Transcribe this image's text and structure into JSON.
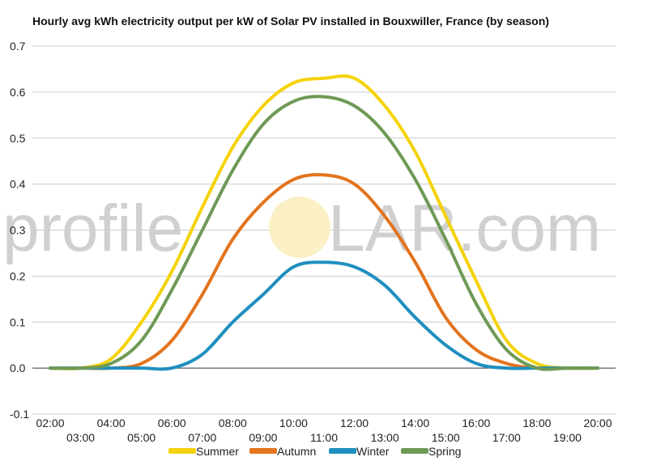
{
  "watermark": {
    "left": "profile",
    "right": "LAR.com"
  },
  "chart_data": {
    "type": "line",
    "title": "Hourly avg kWh electricity output per kW of Solar PV installed in Bouxwiller, France (by season)",
    "xlabel": "",
    "ylabel": "",
    "ylim": [
      -0.1,
      0.7
    ],
    "yticks": [
      "0.7",
      "0.6",
      "0.5",
      "0.4",
      "0.3",
      "0.2",
      "0.1",
      "0.0",
      "-0.1"
    ],
    "x_ticks_upper": [
      "02:00",
      "04:00",
      "06:00",
      "08:00",
      "10:00",
      "12:00",
      "14:00",
      "16:00",
      "18:00",
      "20:00"
    ],
    "x_ticks_lower": [
      "03:00",
      "05:00",
      "07:00",
      "09:00",
      "11:00",
      "13:00",
      "15:00",
      "17:00",
      "19:00"
    ],
    "x": [
      "02:00",
      "03:00",
      "04:00",
      "05:00",
      "06:00",
      "07:00",
      "08:00",
      "09:00",
      "10:00",
      "11:00",
      "12:00",
      "13:00",
      "14:00",
      "15:00",
      "16:00",
      "17:00",
      "18:00",
      "19:00",
      "20:00"
    ],
    "grid": true,
    "legend_position": "bottom",
    "series": [
      {
        "name": "Summer",
        "color": "#f5d20a",
        "values": [
          0.0,
          0.0,
          0.02,
          0.1,
          0.21,
          0.35,
          0.48,
          0.57,
          0.62,
          0.63,
          0.63,
          0.57,
          0.47,
          0.33,
          0.19,
          0.06,
          0.01,
          0.0,
          0.0
        ]
      },
      {
        "name": "Autumn",
        "color": "#e3741e",
        "values": [
          0.0,
          0.0,
          0.0,
          0.01,
          0.06,
          0.16,
          0.28,
          0.36,
          0.41,
          0.42,
          0.4,
          0.33,
          0.23,
          0.11,
          0.04,
          0.01,
          0.0,
          0.0,
          0.0
        ]
      },
      {
        "name": "Winter",
        "color": "#1f8fbf",
        "values": [
          0.0,
          0.0,
          0.0,
          0.0,
          0.0,
          0.03,
          0.1,
          0.16,
          0.22,
          0.23,
          0.22,
          0.18,
          0.11,
          0.05,
          0.01,
          0.0,
          0.0,
          0.0,
          0.0
        ]
      },
      {
        "name": "Spring",
        "color": "#6e9a55",
        "values": [
          0.0,
          0.0,
          0.01,
          0.06,
          0.17,
          0.3,
          0.43,
          0.53,
          0.58,
          0.59,
          0.57,
          0.51,
          0.41,
          0.28,
          0.14,
          0.04,
          0.0,
          0.0,
          0.0
        ]
      }
    ]
  }
}
